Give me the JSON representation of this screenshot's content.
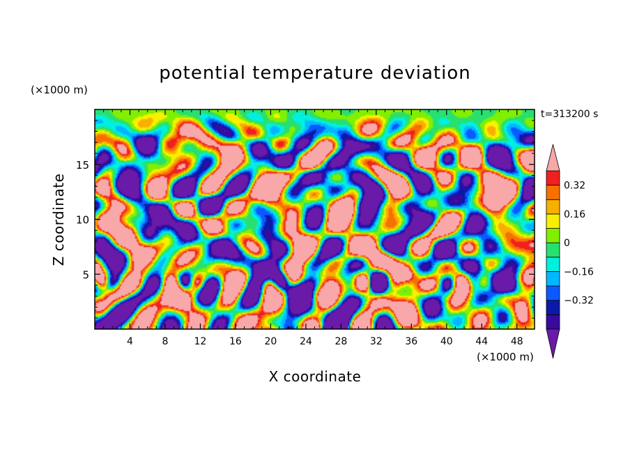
{
  "chart_data": {
    "type": "heatmap",
    "title": "potential temperature deviation",
    "xlabel": "X coordinate",
    "ylabel": "Z coordinate",
    "x_unit": "(×1000 m)",
    "y_unit": "(×1000 m)",
    "time_label": "t=313200 s",
    "xlim": [
      0,
      50
    ],
    "ylim": [
      0,
      20
    ],
    "x_ticks": [
      4,
      8,
      12,
      16,
      20,
      24,
      28,
      32,
      36,
      40,
      44,
      48
    ],
    "y_ticks": [
      5,
      10,
      15
    ],
    "colorbar": {
      "levels": [
        -0.48,
        -0.4,
        -0.32,
        -0.24,
        -0.16,
        -0.08,
        0,
        0.08,
        0.16,
        0.24,
        0.32,
        0.4,
        0.48
      ],
      "labeled_levels": [
        0.32,
        0.16,
        0,
        -0.16,
        -0.32
      ],
      "colors_low_to_high": [
        "#6a1aa8",
        "#3a0aa0",
        "#0a1aa8",
        "#0a5aff",
        "#00b8ff",
        "#00f0e0",
        "#28e070",
        "#80f000",
        "#f8f000",
        "#f8b000",
        "#f87000",
        "#f02020",
        "#f8a8a8"
      ],
      "extend": "both"
    }
  }
}
